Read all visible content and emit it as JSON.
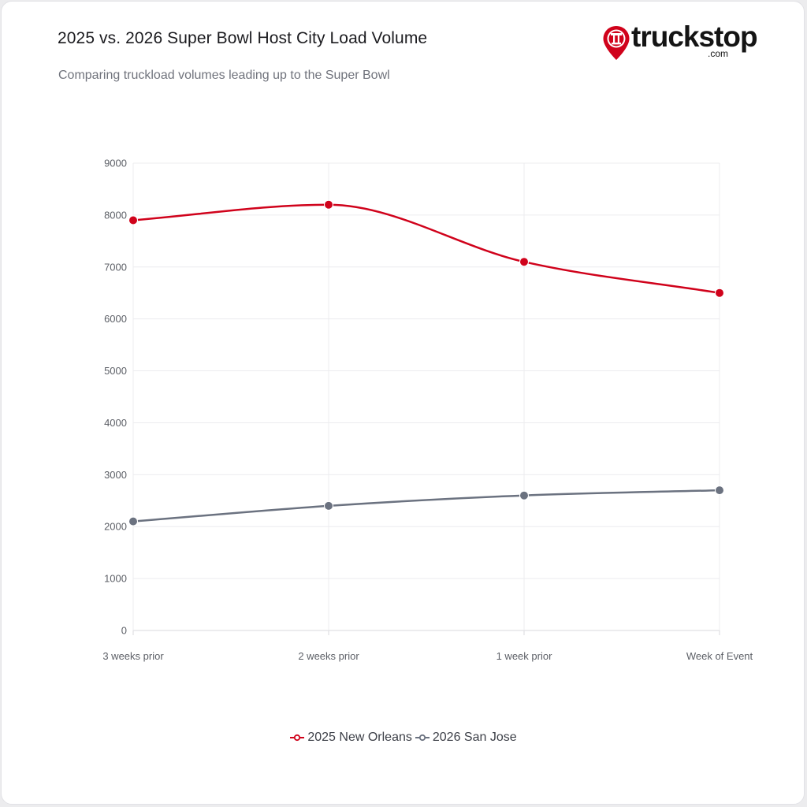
{
  "header": {
    "title": "2025 vs. 2026 Super Bowl Host City Load Volume",
    "subtitle": "Comparing truckload volumes leading up to the Super Bowl"
  },
  "logo": {
    "wordmark": "truckstop",
    "suffix": ".com",
    "icon": "location-pin-pillar-icon",
    "color": "#d0021b"
  },
  "chart_data": {
    "type": "line",
    "title": "2025 vs. 2026 Super Bowl Host City Load Volume",
    "subtitle": "Comparing truckload volumes leading up to the Super Bowl",
    "xlabel": "",
    "ylabel": "",
    "categories": [
      "3 weeks prior",
      "2 weeks prior",
      "1 week prior",
      "Week of Event"
    ],
    "ylim": [
      0,
      9000
    ],
    "yticks": [
      0,
      1000,
      2000,
      3000,
      4000,
      5000,
      6000,
      7000,
      8000,
      9000
    ],
    "grid": true,
    "legend_position": "bottom",
    "series": [
      {
        "name": "2025 New Orleans",
        "values": [
          7900,
          8200,
          7100,
          6500
        ],
        "color": "#d0021b"
      },
      {
        "name": "2026 San Jose",
        "values": [
          2100,
          2400,
          2600,
          2700
        ],
        "color": "#6b7280"
      }
    ]
  }
}
